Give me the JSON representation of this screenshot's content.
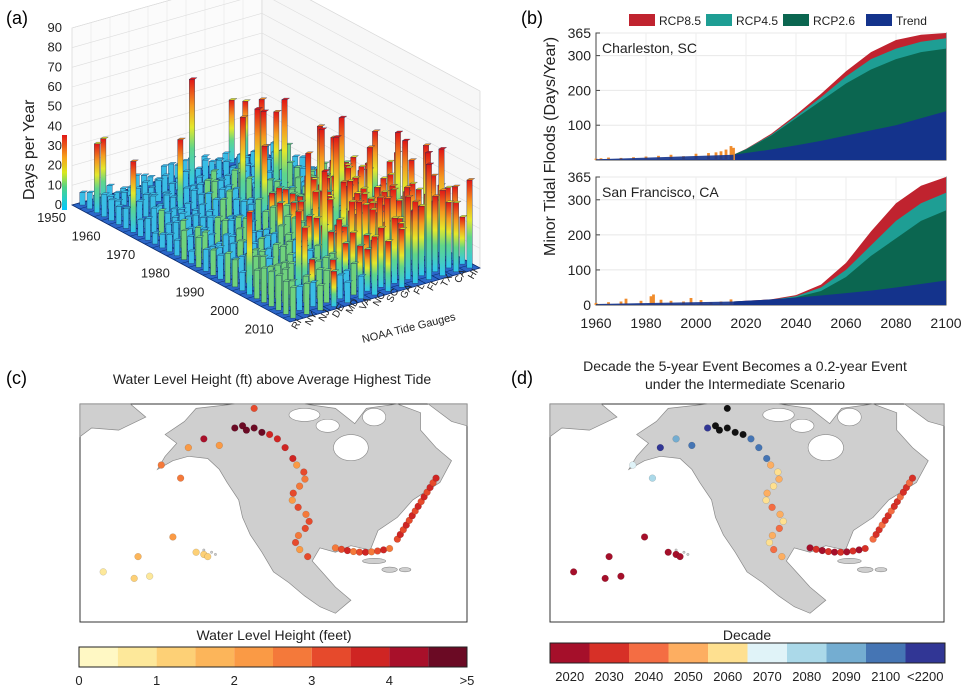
{
  "panels": {
    "a": "(a)",
    "b": "(b)",
    "c": "(c)",
    "d": "(d)"
  },
  "chart_data": [
    {
      "id": "a",
      "type": "bar3d",
      "zlabel": "Days per Year",
      "xlabel": "NOAA Tide Gauges",
      "zlim": [
        0,
        90
      ],
      "zticks": [
        "0",
        "10",
        "20",
        "30",
        "40",
        "50",
        "60",
        "70",
        "80",
        "90"
      ],
      "years": [
        "1950",
        "1960",
        "1970",
        "1980",
        "1990",
        "2000",
        "2010"
      ],
      "gauges": [
        "RI",
        "NY",
        "NJ",
        "DE",
        "MD",
        "VA",
        "NC",
        "SC",
        "GA",
        "FL",
        "FL",
        "TX",
        "CA",
        "HI"
      ],
      "colorbar_range": [
        0,
        40
      ]
    },
    {
      "id": "b",
      "type": "area",
      "ylabel": "Minor Tidal Floods (Days/Year)",
      "xlim": [
        1960,
        2100
      ],
      "xticks": [
        "1960",
        "1980",
        "2000",
        "2020",
        "2040",
        "2060",
        "2080",
        "2100"
      ],
      "yticks": [
        "0",
        "100",
        "200",
        "300",
        "365"
      ],
      "legend": [
        {
          "name": "RCP8.5",
          "color": "#c0232f"
        },
        {
          "name": "RCP4.5",
          "color": "#1e9e94"
        },
        {
          "name": "RCP2.6",
          "color": "#0b6650"
        },
        {
          "name": "Trend",
          "color": "#14338c"
        }
      ],
      "observed_color": "#f08c2b",
      "subplots": [
        {
          "label": "Charleston, SC",
          "obs_years": [
            1960,
            1962,
            1965,
            1970,
            1975,
            1980,
            1985,
            1990,
            1995,
            2000,
            2005,
            2008,
            2010,
            2012,
            2014,
            2015
          ],
          "obs_values": [
            4,
            5,
            7,
            6,
            8,
            10,
            12,
            15,
            11,
            18,
            20,
            22,
            25,
            30,
            40,
            35
          ],
          "years": [
            2015,
            2020,
            2030,
            2040,
            2050,
            2060,
            2070,
            2080,
            2090,
            2100
          ],
          "trend": [
            15,
            20,
            30,
            42,
            55,
            70,
            85,
            100,
            120,
            140
          ],
          "rcp26": [
            15,
            30,
            70,
            120,
            170,
            220,
            260,
            290,
            310,
            320
          ],
          "rcp45": [
            15,
            31,
            72,
            125,
            180,
            240,
            290,
            320,
            340,
            350
          ],
          "rcp85": [
            15,
            32,
            75,
            130,
            190,
            255,
            310,
            345,
            360,
            365
          ]
        },
        {
          "label": "San Francisco, CA",
          "obs_years": [
            1960,
            1965,
            1970,
            1972,
            1978,
            1982,
            1983,
            1986,
            1990,
            1995,
            1998,
            2002,
            2006,
            2010,
            2014
          ],
          "obs_values": [
            6,
            8,
            10,
            18,
            12,
            25,
            30,
            15,
            12,
            10,
            20,
            14,
            8,
            10,
            16
          ],
          "years": [
            2015,
            2020,
            2030,
            2040,
            2050,
            2060,
            2070,
            2080,
            2090,
            2100
          ],
          "trend": [
            10,
            12,
            16,
            21,
            27,
            34,
            41,
            50,
            60,
            70
          ],
          "rcp26": [
            10,
            11,
            14,
            22,
            40,
            80,
            140,
            190,
            240,
            270
          ],
          "rcp45": [
            10,
            11,
            15,
            25,
            50,
            100,
            170,
            240,
            290,
            320
          ],
          "rcp85": [
            10,
            12,
            16,
            28,
            58,
            120,
            210,
            290,
            340,
            365
          ]
        }
      ]
    },
    {
      "id": "c",
      "type": "map-scatter",
      "title": "Water Level Height (ft) above Average Highest Tide",
      "colorbar_label": "Water Level Height (feet)",
      "colorbar_colors": [
        "#fff8c4",
        "#fde89a",
        "#fdd076",
        "#fcb55a",
        "#fa9a45",
        "#f4793a",
        "#e64a2c",
        "#cf2523",
        "#a8102a",
        "#6b0a24"
      ],
      "colorbar_ticks": [
        "0",
        "1",
        "2",
        "3",
        "4",
        ">5"
      ]
    },
    {
      "id": "d",
      "type": "map-scatter",
      "title_line1": "Decade the 5-year Event Becomes a 0.2-year Event",
      "title_line2": "under the Intermediate Scenario",
      "colorbar_label": "Decade",
      "colorbar_colors": [
        "#a50f2a",
        "#d73027",
        "#f46d43",
        "#fdae61",
        "#fee090",
        "#e0f3f8",
        "#abd9e9",
        "#74add1",
        "#4575b4",
        "#313695"
      ],
      "colorbar_ticks": [
        "2020",
        "2030",
        "2040",
        "2050",
        "2060",
        "2070",
        "2080",
        "2090",
        "2100",
        "<2200"
      ]
    }
  ]
}
